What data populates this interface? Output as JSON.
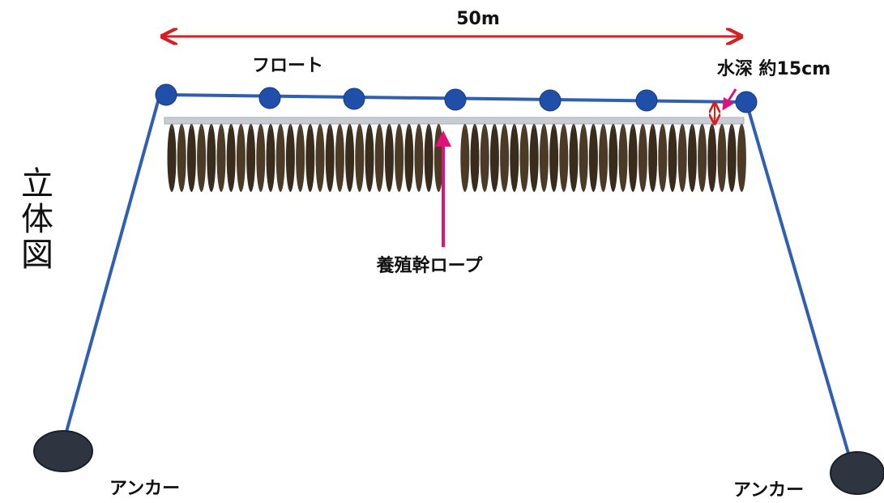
{
  "dimension": {
    "label": "50m"
  },
  "float_label": "フロート",
  "depth_label": "水深 約15cm",
  "view_title": "立体図",
  "rope_label": "養殖幹ロープ",
  "anchors": [
    {
      "label": "アンカー"
    },
    {
      "label": "アンカー"
    }
  ]
}
